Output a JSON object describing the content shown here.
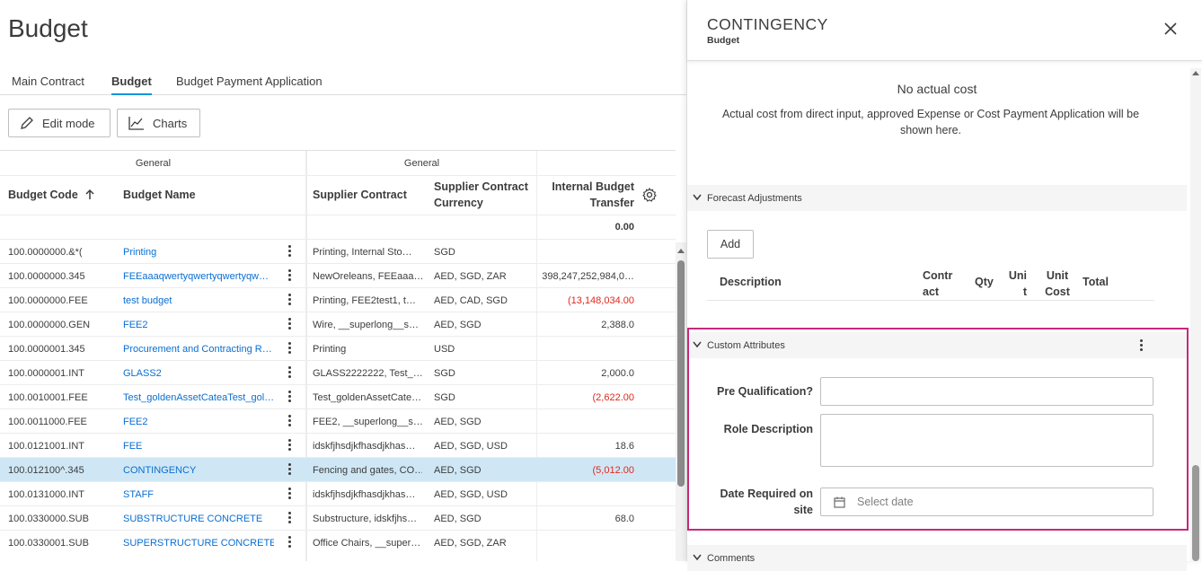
{
  "page": {
    "title": "Budget"
  },
  "tabs": [
    {
      "label": "Main Contract"
    },
    {
      "label": "Budget"
    },
    {
      "label": "Budget Payment Application"
    }
  ],
  "toolbar": {
    "edit_mode": "Edit mode",
    "charts": "Charts"
  },
  "grid": {
    "groups": [
      "General",
      "General"
    ],
    "headers": {
      "budget_code": "Budget Code",
      "budget_name": "Budget Name",
      "supplier_contract": "Supplier Contract",
      "currency": "Supplier Contract Currency",
      "transfer": "Internal Budget Transfer"
    },
    "summary_transfer": "0.00",
    "rows": [
      {
        "code": "100.0000000.&*(",
        "name": "Printing",
        "contract": "Printing, Internal Sto…",
        "currency": "SGD",
        "transfer": ""
      },
      {
        "code": "100.0000000.345",
        "name": "FEEaaaqwertyqwertyqwertyqw…",
        "contract": "NewOreleans, FEEaaa…",
        "currency": "AED, SGD, ZAR",
        "transfer": "398,247,252,984,0…"
      },
      {
        "code": "100.0000000.FEE",
        "name": "test budget",
        "contract": "Printing, FEE2test1, t…",
        "currency": "AED, CAD, SGD",
        "transfer": "(13,148,034.00"
      },
      {
        "code": "100.0000000.GEN",
        "name": "FEE2",
        "contract": "Wire, __superlong__s…",
        "currency": "AED, SGD",
        "transfer": "2,388.0"
      },
      {
        "code": "100.0000001.345",
        "name": "Procurement and Contracting R…",
        "contract": "Printing",
        "currency": "USD",
        "transfer": ""
      },
      {
        "code": "100.0000001.INT",
        "name": "GLASS2",
        "contract": "GLASS2222222, Test_…",
        "currency": "SGD",
        "transfer": "2,000.0"
      },
      {
        "code": "100.0010001.FEE",
        "name": "Test_goldenAssetCateaTest_gol…",
        "contract": "Test_goldenAssetCate…",
        "currency": "SGD",
        "transfer": "(2,622.00"
      },
      {
        "code": "100.0011000.FEE",
        "name": "FEE2",
        "contract": "FEE2, __superlong__s…",
        "currency": "AED, SGD",
        "transfer": ""
      },
      {
        "code": "100.0121001.INT",
        "name": "FEE",
        "contract": "idskfjhsdjkfhasdjkhas…",
        "currency": "AED, SGD, USD",
        "transfer": "18.6"
      },
      {
        "code": "100.012100^.345",
        "name": "CONTINGENCY",
        "contract": "Fencing and gates, CO…",
        "currency": "AED, SGD",
        "transfer": "(5,012.00"
      },
      {
        "code": "100.0131000.INT",
        "name": "STAFF",
        "contract": "idskfjhsdjkfhasdjkhas…",
        "currency": "AED, SGD, USD",
        "transfer": ""
      },
      {
        "code": "100.0330000.SUB",
        "name": "SUBSTRUCTURE CONCRETE",
        "contract": "Substructure, idskfjhs…",
        "currency": "AED, SGD",
        "transfer": "68.0"
      },
      {
        "code": "100.0330001.SUB",
        "name": "SUPERSTRUCTURE CONCRETE",
        "contract": "Office Chairs, __super…",
        "currency": "AED, SGD, ZAR",
        "transfer": ""
      }
    ]
  },
  "panel": {
    "title": "CONTINGENCY",
    "subtitle": "Budget",
    "empty_title": "No actual cost",
    "empty_desc": "Actual cost from direct input, approved Expense or Cost Payment Application will be shown here.",
    "forecast": {
      "title": "Forecast Adjustments",
      "add_label": "Add",
      "columns": [
        "Description",
        "Contract",
        "Qty",
        "Unit",
        "Unit Cost",
        "Total"
      ]
    },
    "custom": {
      "title": "Custom Attributes",
      "pre_qual_label": "Pre Qualification?",
      "role_label": "Role Description",
      "date_label": "Date Required on site",
      "date_placeholder": "Select date"
    },
    "comments_title": "Comments"
  },
  "colors": {
    "accent": "#0696d7",
    "link": "#0a6ed1",
    "negative": "#e0281e",
    "selected_row": "#cfe7f5",
    "highlight": "#c8287a"
  }
}
